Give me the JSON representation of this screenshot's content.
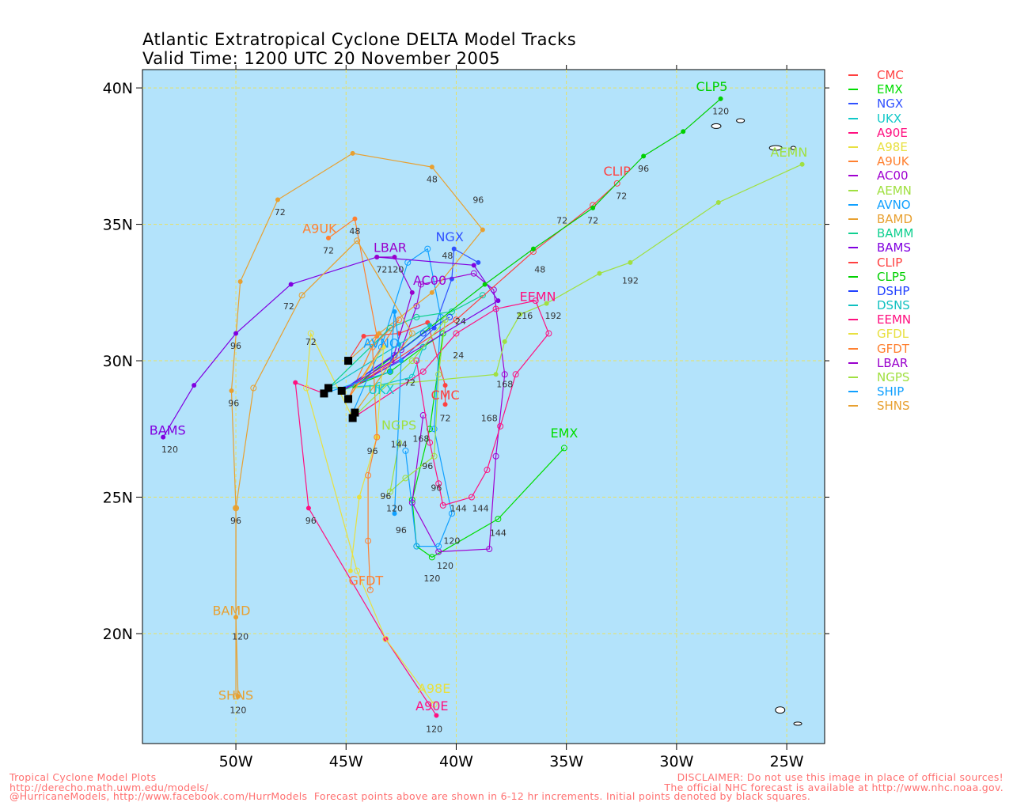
{
  "title": {
    "line1": "Atlantic Extratropical Cyclone DELTA Model Tracks",
    "line2": "Valid Time: 1200 UTC 20 November 2005"
  },
  "footer": {
    "left1": "Tropical Cyclone Model Plots",
    "left2": "http://derecho.math.uwm.edu/models/",
    "right1": "DISCLAIMER: Do not use this image in place of official sources!",
    "right2": "The official NHC forecast is available at http://www.nhc.noaa.gov.",
    "bottom": "@HurricaneModels, http://www.facebook.com/HurrModels  Forecast points above are shown in 6-12 hr increments. Initial points denoted by black squares."
  },
  "colors": {
    "ocean": "#b3e3fb",
    "grid": "#e8e060",
    "initial": "#000000"
  },
  "chart_data": {
    "type": "line",
    "title": "Atlantic Extratropical Cyclone DELTA Model Tracks",
    "xlabel": "Longitude",
    "ylabel": "Latitude",
    "xlim": [
      -54.24,
      -23.28
    ],
    "ylim": [
      15.97,
      40.67
    ],
    "xticks": [
      {
        "v": -50,
        "label": "50W"
      },
      {
        "v": -45,
        "label": "45W"
      },
      {
        "v": -40,
        "label": "40W"
      },
      {
        "v": -35,
        "label": "35W"
      },
      {
        "v": -30,
        "label": "30W"
      },
      {
        "v": -25,
        "label": "25W"
      }
    ],
    "yticks": [
      {
        "v": 40,
        "label": "40N"
      },
      {
        "v": 35,
        "label": "35N"
      },
      {
        "v": 30,
        "label": "30N"
      },
      {
        "v": 25,
        "label": "25N"
      },
      {
        "v": 20,
        "label": "20N"
      }
    ],
    "grid": true,
    "legend_position": "right",
    "initial_points": [
      [
        -44.9,
        30.0
      ],
      [
        -45.8,
        29.0
      ],
      [
        -45.2,
        28.9
      ],
      [
        -44.9,
        28.6
      ],
      [
        -44.7,
        27.9
      ],
      [
        -46.0,
        28.8
      ],
      [
        -44.6,
        28.1
      ]
    ],
    "series": [
      {
        "name": "CMC",
        "color": "#ff4040",
        "points": [
          [
            -44.9,
            30.0
          ],
          [
            -44.2,
            30.9
          ],
          [
            -42.6,
            31.0
          ],
          [
            -41.3,
            31.4
          ],
          [
            -40.5,
            29.1
          ],
          [
            -40.5,
            28.4
          ]
        ],
        "end_label": [
          -40.5,
          28.7
        ]
      },
      {
        "name": "EMX",
        "color": "#00dd00",
        "points": [
          [
            -45.2,
            28.9
          ],
          [
            -43.0,
            29.6
          ],
          [
            -41.5,
            30.5
          ],
          [
            -40.6,
            31.0
          ],
          [
            -41.2,
            27.5
          ],
          [
            -42.0,
            24.9
          ],
          [
            -41.8,
            23.2
          ],
          [
            -41.1,
            22.8
          ],
          [
            -38.1,
            24.2
          ],
          [
            -35.1,
            26.8
          ]
        ],
        "end_label": [
          -35.1,
          27.3
        ]
      },
      {
        "name": "NGX",
        "color": "#3050ff",
        "points": [
          [
            -45.2,
            28.9
          ],
          [
            -42.5,
            30.0
          ],
          [
            -41.0,
            31.2
          ],
          [
            -40.2,
            33.0
          ],
          [
            -40.1,
            34.1
          ],
          [
            -39.0,
            33.6
          ]
        ],
        "end_label": [
          -40.3,
          34.5
        ]
      },
      {
        "name": "UKX",
        "color": "#10c8c8",
        "points": [
          [
            -45.8,
            29.0
          ],
          [
            -43.5,
            29.1
          ],
          [
            -42.0,
            29.4
          ],
          [
            -41.5,
            30.5
          ]
        ],
        "end_label": [
          -43.4,
          28.9
        ]
      },
      {
        "name": "A90E",
        "color": "#ff1080",
        "points": [
          [
            -46.0,
            28.8
          ],
          [
            -47.3,
            29.2
          ],
          [
            -46.7,
            24.6
          ],
          [
            -43.2,
            19.8
          ],
          [
            -40.9,
            17.0
          ]
        ],
        "end_label": [
          -41.1,
          17.3
        ]
      },
      {
        "name": "A98E",
        "color": "#e8e040",
        "points": [
          [
            -44.7,
            27.9
          ],
          [
            -46.6,
            31.0
          ],
          [
            -46.8,
            29.0
          ],
          [
            -44.5,
            22.3
          ],
          [
            -43.2,
            19.8
          ],
          [
            -41.0,
            17.4
          ]
        ],
        "end_label": [
          -41.0,
          17.6
        ]
      },
      {
        "name": "A9UK",
        "color": "#ff8030",
        "points": [
          [
            -44.9,
            28.6
          ],
          [
            -43.6,
            30.9
          ],
          [
            -44.6,
            35.2
          ],
          [
            -45.8,
            34.5
          ]
        ],
        "end_label": [
          -46.2,
          34.8
        ]
      },
      {
        "name": "AC00",
        "color": "#a000d0",
        "points": [
          [
            -45.2,
            28.9
          ],
          [
            -42.5,
            30.4
          ],
          [
            -41.8,
            32.0
          ],
          [
            -41.6,
            32.8
          ],
          [
            -39.2,
            33.2
          ],
          [
            -38.3,
            32.6
          ],
          [
            -37.8,
            29.5
          ],
          [
            -38.2,
            26.5
          ],
          [
            -38.5,
            23.1
          ],
          [
            -40.8,
            23.0
          ],
          [
            -42.0,
            24.8
          ],
          [
            -41.5,
            28.0
          ]
        ],
        "end_label": [
          -41.2,
          32.9
        ]
      },
      {
        "name": "AEMN",
        "color": "#a0e040",
        "points": [
          [
            -44.7,
            29.0
          ],
          [
            -38.2,
            29.5
          ],
          [
            -37.8,
            30.7
          ],
          [
            -37.1,
            31.7
          ],
          [
            -35.9,
            32.1
          ],
          [
            -33.5,
            33.2
          ],
          [
            -32.1,
            33.6
          ],
          [
            -28.1,
            35.8
          ],
          [
            -24.3,
            37.2
          ]
        ],
        "end_label": [
          -24.9,
          37.6
        ]
      },
      {
        "name": "AVNO",
        "color": "#10a0ff",
        "points": [
          [
            -44.7,
            28.1
          ],
          [
            -43.4,
            30.5
          ],
          [
            -42.2,
            33.6
          ],
          [
            -41.3,
            34.1
          ],
          [
            -40.7,
            31.6
          ],
          [
            -41.0,
            27.5
          ],
          [
            -40.2,
            24.4
          ],
          [
            -40.8,
            23.2
          ],
          [
            -41.8,
            23.2
          ],
          [
            -42.3,
            26.7
          ]
        ],
        "end_label": [
          -43.4,
          30.6
        ]
      },
      {
        "name": "BAMD",
        "color": "#e8a030",
        "points": [
          [
            -44.9,
            30.0
          ],
          [
            -43.5,
            31.0
          ],
          [
            -41.1,
            32.5
          ],
          [
            -38.8,
            34.8
          ],
          [
            -41.1,
            37.1
          ],
          [
            -44.7,
            37.6
          ],
          [
            -48.1,
            35.9
          ],
          [
            -49.8,
            32.9
          ],
          [
            -50.2,
            28.9
          ],
          [
            -50.0,
            24.6
          ],
          [
            -50.0,
            20.6
          ],
          [
            -49.9,
            17.7
          ]
        ],
        "end_label": [
          -50.2,
          20.8
        ]
      },
      {
        "name": "BAMM",
        "color": "#10d090",
        "points": [
          [
            -45.8,
            29.0
          ],
          [
            -43.0,
            31.2
          ],
          [
            -41.8,
            31.6
          ],
          [
            -40.2,
            31.8
          ],
          [
            -38.8,
            32.4
          ]
        ],
        "end_label": null
      },
      {
        "name": "BAMS",
        "color": "#8000e0",
        "points": [
          [
            -44.7,
            29.0
          ],
          [
            -38.1,
            32.2
          ],
          [
            -39.2,
            33.5
          ],
          [
            -43.6,
            33.8
          ],
          [
            -47.5,
            32.8
          ],
          [
            -50.0,
            31.0
          ],
          [
            -51.9,
            29.1
          ],
          [
            -53.3,
            27.2
          ]
        ],
        "end_label": [
          -53.1,
          27.4
        ]
      },
      {
        "name": "CLIP",
        "color": "#ff4040",
        "points": [
          [
            -44.7,
            29.0
          ],
          [
            -40.0,
            31.5
          ],
          [
            -36.5,
            34.0
          ],
          [
            -33.8,
            35.7
          ],
          [
            -32.7,
            36.5
          ]
        ],
        "end_label": [
          -32.7,
          36.9
        ]
      },
      {
        "name": "CLP5",
        "color": "#00d000",
        "points": [
          [
            -44.7,
            29.0
          ],
          [
            -38.7,
            32.8
          ],
          [
            -36.5,
            34.1
          ],
          [
            -33.8,
            35.6
          ],
          [
            -31.5,
            37.5
          ],
          [
            -29.7,
            38.4
          ],
          [
            -28.0,
            39.6
          ]
        ],
        "end_label": [
          -28.4,
          40.0
        ]
      },
      {
        "name": "DSHP",
        "color": "#2040ff",
        "points": [
          [
            -45.2,
            28.9
          ],
          [
            -42.8,
            30.2
          ],
          [
            -41.5,
            31.0
          ],
          [
            -40.3,
            31.6
          ]
        ],
        "end_label": null
      },
      {
        "name": "DSNS",
        "color": "#10c0c0",
        "points": [
          [
            -45.8,
            29.0
          ],
          [
            -42.6,
            30.6
          ],
          [
            -41.2,
            31.3
          ]
        ],
        "end_label": null
      },
      {
        "name": "EEMN",
        "color": "#ff1080",
        "points": [
          [
            -44.7,
            27.9
          ],
          [
            -41.5,
            29.6
          ],
          [
            -40.0,
            31.0
          ],
          [
            -38.2,
            31.9
          ],
          [
            -36.4,
            32.2
          ],
          [
            -35.8,
            31.0
          ],
          [
            -37.3,
            29.5
          ],
          [
            -38.0,
            27.6
          ],
          [
            -38.6,
            26.0
          ],
          [
            -39.3,
            25.0
          ],
          [
            -40.6,
            24.7
          ],
          [
            -40.8,
            25.5
          ],
          [
            -41.2,
            27.0
          ],
          [
            -41.8,
            30.0
          ]
        ],
        "end_label": [
          -36.3,
          32.3
        ]
      },
      {
        "name": "GFDL",
        "color": "#e8e040",
        "points": [
          [
            -44.9,
            28.6
          ],
          [
            -43.3,
            30.5
          ],
          [
            -43.6,
            27.2
          ],
          [
            -44.4,
            25.0
          ],
          [
            -44.8,
            22.3
          ]
        ],
        "end_label": null
      },
      {
        "name": "GFDT",
        "color": "#ff8030",
        "points": [
          [
            -44.9,
            28.6
          ],
          [
            -42.6,
            31.5
          ],
          [
            -43.8,
            30.5
          ],
          [
            -43.6,
            27.2
          ],
          [
            -44.0,
            25.8
          ],
          [
            -44.0,
            23.4
          ],
          [
            -43.9,
            21.6
          ]
        ],
        "end_label": [
          -44.1,
          21.9
        ]
      },
      {
        "name": "LBAR",
        "color": "#9900cc",
        "points": [
          [
            -45.2,
            28.9
          ],
          [
            -42.9,
            30.0
          ],
          [
            -42.0,
            32.5
          ],
          [
            -42.8,
            33.8
          ],
          [
            -43.6,
            33.8
          ]
        ],
        "end_label": [
          -43.0,
          34.1
        ]
      },
      {
        "name": "NGPS",
        "color": "#a0e040",
        "points": [
          [
            -44.7,
            27.9
          ],
          [
            -42.0,
            30.0
          ],
          [
            -40.5,
            31.5
          ],
          [
            -40.8,
            29.5
          ],
          [
            -41.0,
            26.5
          ],
          [
            -42.3,
            25.7
          ],
          [
            -43.0,
            25.2
          ],
          [
            -42.6,
            27.0
          ]
        ],
        "end_label": [
          -42.6,
          27.6
        ]
      },
      {
        "name": "SHIP",
        "color": "#10a0ff",
        "points": [
          [
            -46.0,
            28.8
          ],
          [
            -43.0,
            29.6
          ],
          [
            -42.8,
            31.8
          ],
          [
            -42.5,
            30.0
          ],
          [
            -42.8,
            24.4
          ]
        ],
        "end_label": null
      },
      {
        "name": "SHNS",
        "color": "#e8a030",
        "points": [
          [
            -44.6,
            28.1
          ],
          [
            -42.0,
            31.0
          ],
          [
            -44.5,
            34.4
          ],
          [
            -47.0,
            32.4
          ],
          [
            -49.2,
            29.0
          ],
          [
            -50.0,
            24.6
          ],
          [
            -50.0,
            17.7
          ]
        ],
        "end_label": [
          -50.0,
          17.7
        ]
      }
    ],
    "hour_labels": [
      {
        "t": "120",
        "lon": -28.0,
        "lat": 39.15
      },
      {
        "t": "96",
        "lon": -31.5,
        "lat": 37.05
      },
      {
        "t": "72",
        "lon": -32.5,
        "lat": 36.05
      },
      {
        "t": "72",
        "lon": -33.8,
        "lat": 35.15
      },
      {
        "t": "72",
        "lon": -35.2,
        "lat": 35.15
      },
      {
        "t": "96",
        "lon": -39.0,
        "lat": 35.9
      },
      {
        "t": "48",
        "lon": -41.1,
        "lat": 36.65
      },
      {
        "t": "48",
        "lon": -44.6,
        "lat": 34.75
      },
      {
        "t": "72",
        "lon": -45.8,
        "lat": 34.05
      },
      {
        "t": "72",
        "lon": -48.0,
        "lat": 35.45
      },
      {
        "t": "72",
        "lon": -47.6,
        "lat": 32.0
      },
      {
        "t": "72",
        "lon": -46.6,
        "lat": 30.7
      },
      {
        "t": "96",
        "lon": -50.0,
        "lat": 30.55
      },
      {
        "t": "96",
        "lon": -50.1,
        "lat": 28.45
      },
      {
        "t": "120",
        "lon": -53.0,
        "lat": 26.75
      },
      {
        "t": "96",
        "lon": -50.0,
        "lat": 24.15
      },
      {
        "t": "120",
        "lon": -49.8,
        "lat": 19.9
      },
      {
        "t": "120",
        "lon": -49.9,
        "lat": 17.2
      },
      {
        "t": "96",
        "lon": -46.6,
        "lat": 24.15
      },
      {
        "t": "120",
        "lon": -41.0,
        "lat": 16.5
      },
      {
        "t": "72120",
        "lon": -43.0,
        "lat": 33.35
      },
      {
        "t": "48",
        "lon": -40.4,
        "lat": 33.85
      },
      {
        "t": "48",
        "lon": -36.2,
        "lat": 33.35
      },
      {
        "t": "216",
        "lon": -36.9,
        "lat": 31.65
      },
      {
        "t": "192",
        "lon": -35.6,
        "lat": 31.65
      },
      {
        "t": "192",
        "lon": -32.1,
        "lat": 32.95
      },
      {
        "t": "168",
        "lon": -37.8,
        "lat": 29.15
      },
      {
        "t": "168",
        "lon": -38.5,
        "lat": 27.9
      },
      {
        "t": "24",
        "lon": -39.8,
        "lat": 31.45
      },
      {
        "t": "24",
        "lon": -39.9,
        "lat": 30.2
      },
      {
        "t": "72",
        "lon": -40.5,
        "lat": 27.9
      },
      {
        "t": "72",
        "lon": -42.1,
        "lat": 29.2
      },
      {
        "t": "144",
        "lon": -42.6,
        "lat": 26.95
      },
      {
        "t": "168",
        "lon": -41.6,
        "lat": 27.15
      },
      {
        "t": "96",
        "lon": -41.3,
        "lat": 26.15
      },
      {
        "t": "96",
        "lon": -40.9,
        "lat": 25.35
      },
      {
        "t": "96",
        "lon": -43.2,
        "lat": 25.05
      },
      {
        "t": "120",
        "lon": -42.8,
        "lat": 24.6
      },
      {
        "t": "144",
        "lon": -39.9,
        "lat": 24.6
      },
      {
        "t": "144",
        "lon": -38.9,
        "lat": 24.6
      },
      {
        "t": "144",
        "lon": -38.1,
        "lat": 23.7
      },
      {
        "t": "120",
        "lon": -40.5,
        "lat": 22.5
      },
      {
        "t": "120",
        "lon": -41.1,
        "lat": 22.2
      },
      {
        "t": "120",
        "lon": -40.2,
        "lat": 23.4
      },
      {
        "t": "96",
        "lon": -42.5,
        "lat": 23.8
      },
      {
        "t": "96",
        "lon": -43.8,
        "lat": 26.7
      }
    ]
  }
}
